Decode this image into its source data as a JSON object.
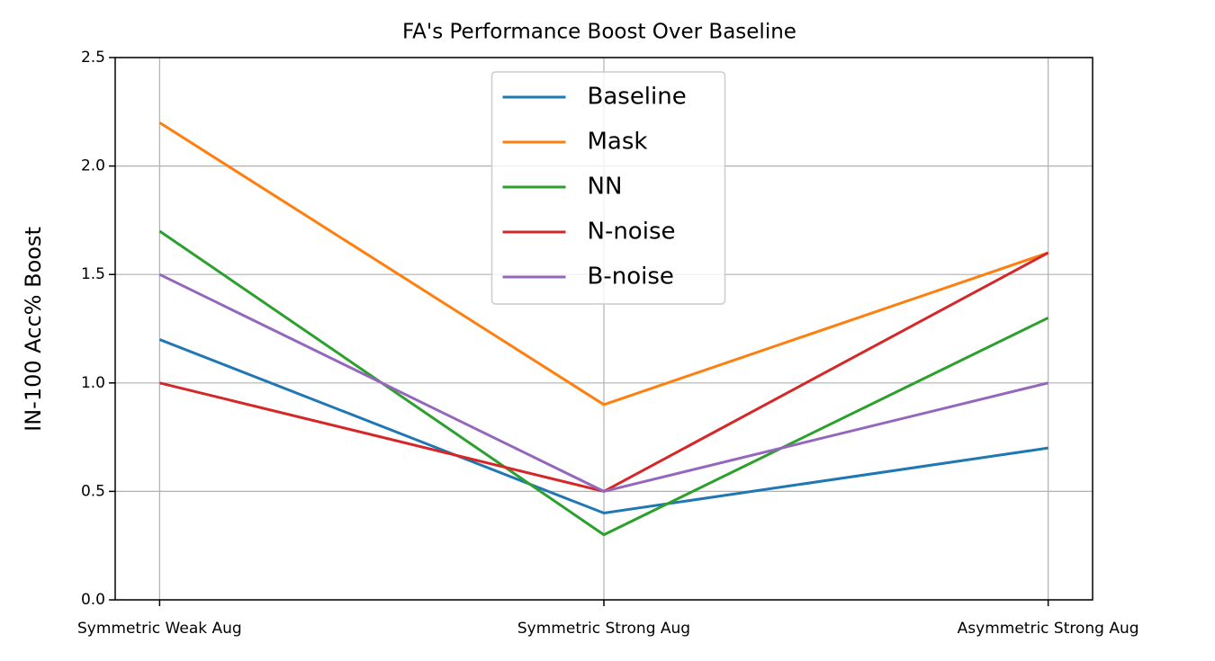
{
  "chart_data": {
    "type": "line",
    "title": "FA's Performance Boost Over Baseline",
    "y_label": "IN-100 Acc% Boost",
    "categories": [
      "Symmetric Weak Aug",
      "Symmetric Strong Aug",
      "Asymmetric Strong Aug"
    ],
    "series": [
      {
        "name": "Baseline",
        "color": "#1f77b4",
        "values": [
          1.2,
          0.4,
          0.7
        ]
      },
      {
        "name": "Mask",
        "color": "#ff7f0e",
        "values": [
          2.2,
          0.9,
          1.6
        ]
      },
      {
        "name": "NN",
        "color": "#2ca02c",
        "values": [
          1.7,
          0.3,
          1.3
        ]
      },
      {
        "name": "N-noise",
        "color": "#d62728",
        "values": [
          1.0,
          0.5,
          1.6
        ]
      },
      {
        "name": "B-noise",
        "color": "#9467bd",
        "values": [
          1.5,
          0.5,
          1.0
        ]
      }
    ],
    "ylim": [
      0,
      2.5
    ],
    "yticks": [
      {
        "value": 0,
        "label": "0.0"
      },
      0.5,
      {
        "value": 1,
        "label": "1.0"
      },
      1.5,
      {
        "value": 2,
        "label": "2.0"
      },
      2.5
    ],
    "grid": true,
    "legend": "upper-center"
  }
}
